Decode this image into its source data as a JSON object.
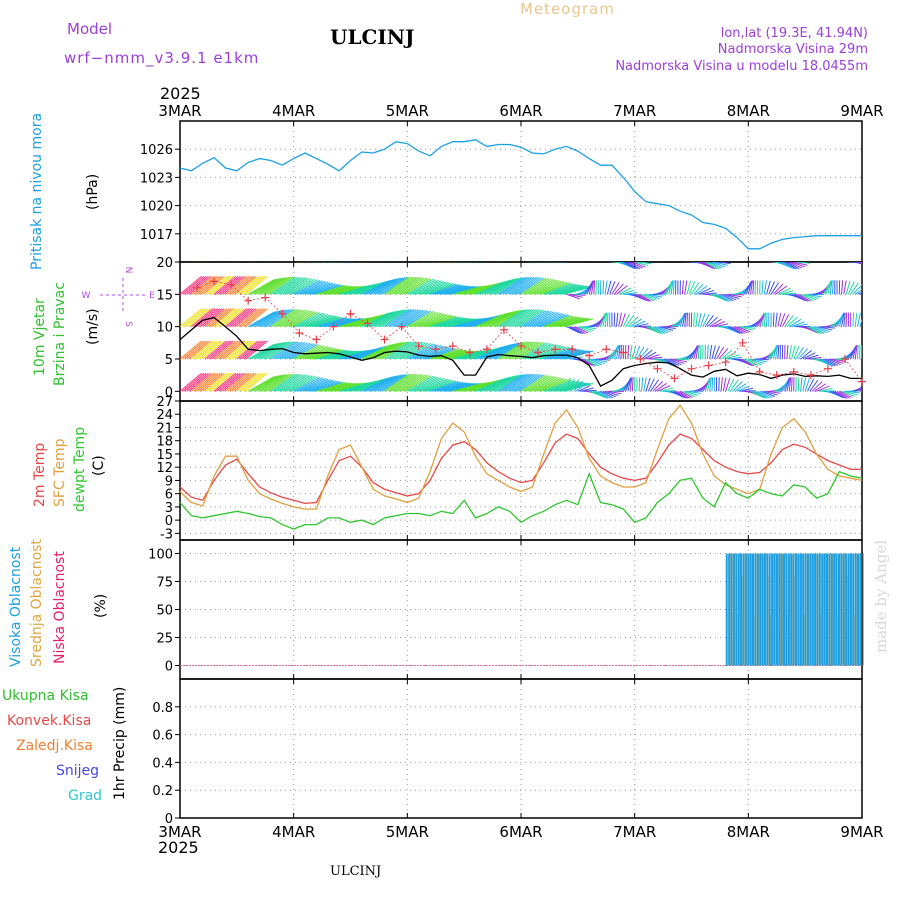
{
  "header": {
    "model_label": "Model",
    "model_name": "wrf−nmm_v3.9.1 e1km",
    "title": "ULCINJ",
    "product": "Meteogram",
    "lonlat": "lon,lat (19.3E, 41.94N)",
    "elevation": "Nadmorska Visina 29m",
    "model_elevation": "Nadmorska Visina u modelu 18.0455m",
    "year": "2025",
    "footer_title": "ULCINJ",
    "watermark": "made by Angel"
  },
  "colors": {
    "pressure": "#1ca0e6",
    "wind_speed": "#000000",
    "gust": "#e8404a",
    "temp_2m": "#e84848",
    "temp_sfc": "#e0a040",
    "dewpoint": "#30c830",
    "cloud_high": "#1c9ee0",
    "cloud_mid": "#e0a640",
    "cloud_low": "#e02070",
    "title": "#000000",
    "model_text": "#9c40d8",
    "product_text": "#e8c890"
  },
  "chart_data": [
    {
      "id": "pressure",
      "type": "line",
      "ylabel": "Pritisak na nivou mora",
      "unit": "(hPa)",
      "ylim": [
        1014,
        1029
      ],
      "yticks": [
        1017,
        1020,
        1023,
        1026
      ],
      "xlim": [
        0,
        6
      ],
      "xticks": [
        "3MAR",
        "4MAR",
        "5MAR",
        "6MAR",
        "7MAR",
        "8MAR",
        "9MAR"
      ],
      "grid": true,
      "series": [
        {
          "color": "#1ca0e6",
          "x": [
            0,
            0.1,
            0.2,
            0.3,
            0.4,
            0.5,
            0.6,
            0.7,
            0.8,
            0.9,
            1.0,
            1.1,
            1.2,
            1.3,
            1.4,
            1.5,
            1.6,
            1.7,
            1.8,
            1.9,
            2.0,
            2.1,
            2.2,
            2.3,
            2.4,
            2.5,
            2.6,
            2.7,
            2.8,
            2.9,
            3.0,
            3.1,
            3.2,
            3.3,
            3.4,
            3.5,
            3.6,
            3.7,
            3.8,
            3.9,
            4.0,
            4.1,
            4.2,
            4.3,
            4.4,
            4.5,
            4.6,
            4.7,
            4.8,
            4.9,
            5.0,
            5.1,
            5.2,
            5.3,
            5.4,
            5.5,
            5.6,
            5.7,
            5.8,
            5.9,
            6.0
          ],
          "y": [
            1024.0,
            1023.7,
            1024.5,
            1025.1,
            1024.0,
            1023.7,
            1024.6,
            1025.0,
            1024.8,
            1024.3,
            1025.0,
            1025.6,
            1025.0,
            1024.4,
            1023.7,
            1024.8,
            1025.7,
            1025.6,
            1026.0,
            1026.8,
            1026.6,
            1025.8,
            1025.3,
            1026.3,
            1026.8,
            1026.8,
            1027.0,
            1026.3,
            1026.5,
            1026.5,
            1026.2,
            1025.6,
            1025.5,
            1026.0,
            1026.3,
            1025.8,
            1025.0,
            1024.3,
            1024.3,
            1023.0,
            1021.5,
            1020.4,
            1020.2,
            1020.0,
            1019.4,
            1019.0,
            1018.2,
            1018.0,
            1017.6,
            1016.6,
            1015.4,
            1015.4,
            1016.0,
            1016.4,
            1016.6,
            1016.7,
            1016.8,
            1016.8,
            1016.8,
            1016.8,
            1016.8
          ]
        }
      ]
    },
    {
      "id": "wind",
      "type": "line",
      "ylabel_line1": "10m Vjetar",
      "ylabel_line2": "Brzina i Pravac",
      "unit": "(m/s)",
      "compass": {
        "n": "N",
        "e": "E",
        "w": "W",
        "s": "S"
      },
      "ylim": [
        -1.5,
        20
      ],
      "yticks": [
        0,
        5,
        10,
        15,
        20
      ],
      "grid": true,
      "series": [
        {
          "name": "speed",
          "color": "#000000",
          "x": [
            0,
            0.1,
            0.2,
            0.3,
            0.4,
            0.5,
            0.6,
            0.7,
            0.8,
            0.9,
            1.0,
            1.1,
            1.2,
            1.3,
            1.4,
            1.5,
            1.6,
            1.7,
            1.8,
            1.9,
            2.0,
            2.1,
            2.2,
            2.3,
            2.4,
            2.5,
            2.6,
            2.7,
            2.8,
            2.9,
            3.0,
            3.1,
            3.2,
            3.3,
            3.4,
            3.5,
            3.6,
            3.7,
            3.8,
            3.9,
            4.0,
            4.1,
            4.2,
            4.3,
            4.4,
            4.5,
            4.6,
            4.7,
            4.8,
            4.9,
            5.0,
            5.1,
            5.2,
            5.3,
            5.4,
            5.5,
            5.6,
            5.7,
            5.8,
            5.9,
            6.0
          ],
          "y": [
            8.0,
            9.5,
            11.0,
            11.4,
            10.0,
            8.5,
            6.5,
            6.3,
            6.5,
            6.6,
            6.0,
            5.8,
            5.9,
            6.0,
            5.8,
            5.3,
            4.8,
            5.2,
            6.0,
            6.2,
            6.1,
            5.6,
            5.4,
            5.5,
            4.8,
            2.5,
            2.5,
            5.3,
            5.7,
            5.5,
            5.4,
            5.2,
            5.5,
            5.6,
            5.6,
            5.2,
            4.0,
            0.8,
            1.7,
            3.5,
            4.0,
            4.3,
            4.5,
            4.4,
            3.5,
            2.5,
            2.2,
            3.1,
            3.4,
            2.4,
            2.8,
            2.6,
            2.0,
            2.5,
            2.7,
            2.3,
            2.4,
            2.3,
            2.5,
            2.0,
            2.0
          ]
        },
        {
          "name": "gusts",
          "color": "#e8404a",
          "x": [
            0.15,
            0.3,
            0.45,
            0.6,
            0.75,
            0.9,
            1.05,
            1.2,
            1.35,
            1.5,
            1.65,
            1.8,
            1.95,
            2.1,
            2.25,
            2.4,
            2.55,
            2.7,
            2.85,
            3.0,
            3.15,
            3.3,
            3.45,
            3.6,
            3.75,
            3.9,
            4.05,
            4.2,
            4.35,
            4.5,
            4.65,
            4.8,
            4.95,
            5.1,
            5.25,
            5.4,
            5.55,
            5.7,
            5.85,
            6.0
          ],
          "y": [
            16.0,
            17.0,
            16.5,
            14.0,
            14.5,
            12.0,
            9.0,
            8.0,
            10.0,
            12.0,
            10.5,
            8.0,
            10.0,
            7.0,
            6.5,
            7.0,
            6.0,
            6.5,
            9.5,
            7.0,
            6.0,
            6.5,
            6.5,
            5.5,
            6.5,
            6.0,
            5.0,
            3.5,
            2.0,
            3.5,
            4.0,
            4.5,
            7.5,
            3.0,
            2.5,
            3.0,
            2.5,
            3.5,
            5.0,
            1.5
          ]
        }
      ]
    },
    {
      "id": "temperature",
      "type": "line",
      "ylabel_2m": "2m Temp",
      "ylabel_sfc": "SFC Temp",
      "ylabel_dew": "dewpt Temp",
      "unit": "(C)",
      "ylim": [
        -4.5,
        27
      ],
      "yticks": [
        -3,
        0,
        3,
        6,
        9,
        12,
        15,
        18,
        21,
        24,
        27
      ],
      "grid": true,
      "series": [
        {
          "name": "2m",
          "color": "#e84848",
          "x": [
            0,
            0.1,
            0.2,
            0.3,
            0.4,
            0.5,
            0.6,
            0.7,
            0.8,
            0.9,
            1.0,
            1.1,
            1.2,
            1.3,
            1.4,
            1.5,
            1.6,
            1.7,
            1.8,
            1.9,
            2.0,
            2.1,
            2.2,
            2.3,
            2.4,
            2.5,
            2.6,
            2.7,
            2.8,
            2.9,
            3.0,
            3.1,
            3.2,
            3.3,
            3.4,
            3.5,
            3.6,
            3.7,
            3.8,
            3.9,
            4.0,
            4.1,
            4.2,
            4.3,
            4.4,
            4.5,
            4.6,
            4.7,
            4.8,
            4.9,
            5.0,
            5.1,
            5.2,
            5.3,
            5.4,
            5.5,
            5.6,
            5.7,
            5.8,
            5.9,
            6.0
          ],
          "y": [
            7.5,
            5.2,
            4.5,
            9.0,
            12.5,
            13.8,
            10.5,
            7.5,
            6.2,
            5.2,
            4.5,
            3.8,
            4.0,
            9.0,
            13.5,
            14.5,
            12.0,
            8.5,
            7.0,
            6.2,
            5.5,
            6.0,
            9.0,
            14.0,
            17.0,
            17.8,
            16.0,
            13.0,
            11.0,
            9.5,
            8.5,
            9.0,
            13.0,
            17.5,
            19.5,
            18.5,
            15.0,
            12.0,
            10.5,
            9.5,
            9.0,
            9.5,
            13.0,
            17.0,
            19.5,
            18.5,
            16.0,
            13.5,
            12.0,
            11.0,
            10.5,
            10.8,
            13.0,
            16.0,
            17.2,
            16.5,
            15.0,
            13.5,
            12.5,
            11.5,
            11.5
          ]
        },
        {
          "name": "sfc",
          "color": "#e0a040",
          "x": [
            0,
            0.1,
            0.2,
            0.3,
            0.4,
            0.5,
            0.6,
            0.7,
            0.8,
            0.9,
            1.0,
            1.1,
            1.2,
            1.3,
            1.4,
            1.5,
            1.6,
            1.7,
            1.8,
            1.9,
            2.0,
            2.1,
            2.2,
            2.3,
            2.4,
            2.5,
            2.6,
            2.7,
            2.8,
            2.9,
            3.0,
            3.1,
            3.2,
            3.3,
            3.4,
            3.5,
            3.6,
            3.7,
            3.8,
            3.9,
            4.0,
            4.1,
            4.2,
            4.3,
            4.4,
            4.5,
            4.6,
            4.7,
            4.8,
            4.9,
            5.0,
            5.1,
            5.2,
            5.3,
            5.4,
            5.5,
            5.6,
            5.7,
            5.8,
            5.9,
            6.0
          ],
          "y": [
            6.5,
            4.0,
            3.2,
            10.0,
            14.5,
            14.5,
            9.0,
            6.0,
            4.8,
            3.8,
            3.0,
            2.5,
            2.5,
            10.0,
            16.0,
            17.0,
            12.0,
            7.0,
            5.5,
            4.8,
            4.0,
            5.0,
            11.0,
            18.5,
            22.0,
            20.0,
            14.5,
            10.5,
            9.0,
            7.5,
            6.5,
            7.5,
            15.0,
            22.0,
            25.0,
            21.0,
            14.0,
            10.0,
            8.5,
            7.5,
            7.5,
            8.5,
            16.0,
            23.0,
            26.0,
            22.0,
            15.0,
            10.0,
            8.0,
            7.0,
            6.0,
            7.0,
            15.0,
            21.0,
            23.0,
            20.0,
            15.0,
            11.5,
            10.0,
            9.5,
            9.0
          ]
        },
        {
          "name": "dewpoint",
          "color": "#30c830",
          "x": [
            0,
            0.1,
            0.2,
            0.3,
            0.4,
            0.5,
            0.6,
            0.7,
            0.8,
            0.9,
            1.0,
            1.1,
            1.2,
            1.3,
            1.4,
            1.5,
            1.6,
            1.7,
            1.8,
            1.9,
            2.0,
            2.1,
            2.2,
            2.3,
            2.4,
            2.5,
            2.6,
            2.7,
            2.8,
            2.9,
            3.0,
            3.1,
            3.2,
            3.3,
            3.4,
            3.5,
            3.6,
            3.7,
            3.8,
            3.9,
            4.0,
            4.1,
            4.2,
            4.3,
            4.4,
            4.5,
            4.6,
            4.7,
            4.8,
            4.9,
            5.0,
            5.1,
            5.2,
            5.3,
            5.4,
            5.5,
            5.6,
            5.7,
            5.8,
            5.9,
            6.0
          ],
          "y": [
            4.0,
            1.0,
            0.5,
            1.0,
            1.5,
            2.0,
            1.5,
            0.8,
            0.5,
            -1.0,
            -2.0,
            -1.0,
            -1.0,
            0.5,
            0.5,
            -0.5,
            0.0,
            -1.0,
            0.5,
            1.0,
            1.5,
            1.5,
            1.0,
            2.0,
            1.5,
            4.5,
            0.5,
            1.5,
            3.0,
            2.0,
            -0.5,
            1.0,
            2.0,
            3.5,
            4.5,
            3.5,
            10.5,
            4.0,
            3.5,
            2.5,
            -0.5,
            0.5,
            4.0,
            6.0,
            9.0,
            9.5,
            5.0,
            3.0,
            8.5,
            6.0,
            5.0,
            7.0,
            6.0,
            5.5,
            8.0,
            7.5,
            5.0,
            6.0,
            11.0,
            10.0,
            9.5
          ]
        }
      ]
    },
    {
      "id": "clouds",
      "type": "bar",
      "ylabel_high": "Visoka Oblacnost",
      "ylabel_mid": "Srednja Oblacnost",
      "ylabel_low": "Niska Oblacnost",
      "unit": "(%)",
      "ylim": [
        -12,
        112
      ],
      "yticks": [
        0,
        25,
        50,
        75,
        100
      ],
      "grid": true,
      "bar_start": 4.81,
      "bar_end": 5.99,
      "bar_step": 0.021,
      "high_values_note": "high and mid cloud 100% from ~7.8 MAR",
      "high": 100,
      "mid": 100,
      "low": 0
    },
    {
      "id": "precip",
      "type": "line",
      "unit": "1hr Precip (mm)",
      "ylim": [
        0,
        1.0
      ],
      "yticks": [
        0,
        0.2,
        0.4,
        0.6,
        0.8
      ],
      "ytick_labels": [
        "0",
        "0.2",
        "0.4",
        "0.6",
        "0.8"
      ],
      "grid": true,
      "legend": [
        {
          "label": "Ukupna Kisa",
          "color": "#30c030"
        },
        {
          "label": "Konvek.Kisa",
          "color": "#e84848"
        },
        {
          "label": "Zaledj.Kisa",
          "color": "#f08030"
        },
        {
          "label": "Snijeg",
          "color": "#4848e0"
        },
        {
          "label": "Grad",
          "color": "#30c8c8"
        }
      ],
      "series": []
    }
  ],
  "axes": {
    "top_dates": [
      "3MAR",
      "4MAR",
      "5MAR",
      "6MAR",
      "7MAR",
      "8MAR",
      "9MAR"
    ],
    "bottom_dates": [
      "3MAR",
      "4MAR",
      "5MAR",
      "6MAR",
      "7MAR",
      "8MAR",
      "9MAR"
    ]
  }
}
